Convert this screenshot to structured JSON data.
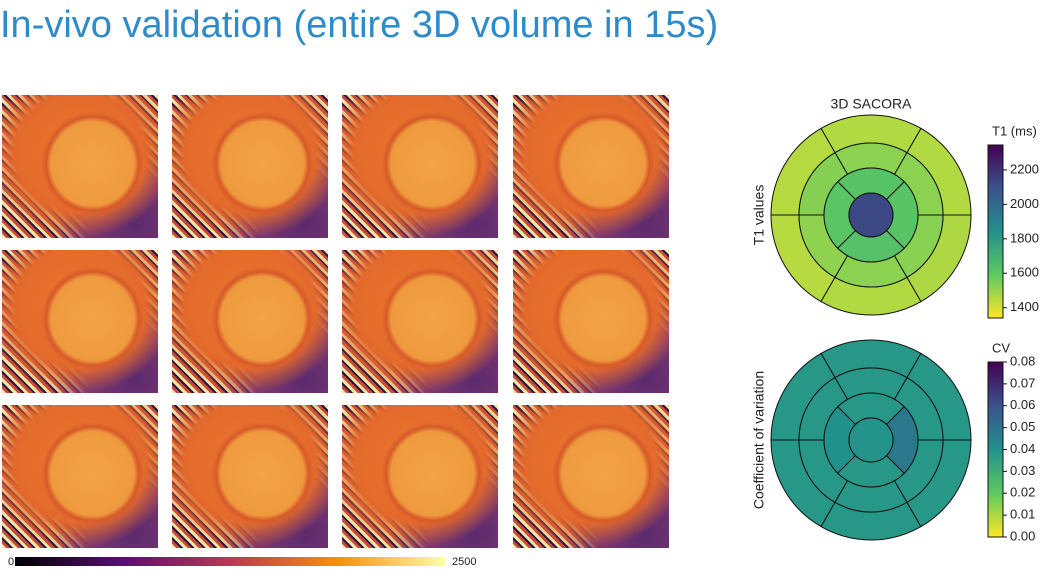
{
  "title": "In-vivo validation (entire 3D volume in 15s)",
  "image_colorbar": {
    "min": 0,
    "max": 2500
  },
  "chart_data": [
    {
      "type": "bullseye",
      "title": "3D SACORA",
      "ylabel": "T1 values",
      "colorbar_label": "T1 (ms)",
      "clim": [
        1340,
        2345
      ],
      "ticks": [
        1400,
        1600,
        1800,
        2000,
        2200
      ],
      "values": [
        1460,
        1455,
        1450,
        1460,
        1465,
        1460,
        1520,
        1530,
        1515,
        1520,
        1525,
        1520,
        1620,
        1610,
        1625,
        1615,
        2125
      ]
    },
    {
      "type": "bullseye",
      "ylabel": "Coefficient of variation",
      "colorbar_label": "CV",
      "clim": [
        0,
        0.08
      ],
      "ticks": [
        {
          "value": 0,
          "label": "0.00"
        },
        0.01,
        0.02,
        0.03,
        0.04,
        0.05,
        0.06,
        0.07,
        0.08
      ],
      "values": [
        0.038,
        0.038,
        0.038,
        0.038,
        0.038,
        0.038,
        0.038,
        0.038,
        0.038,
        0.038,
        0.038,
        0.038,
        0.038,
        0.04,
        0.038,
        0.048,
        0.039
      ]
    }
  ]
}
